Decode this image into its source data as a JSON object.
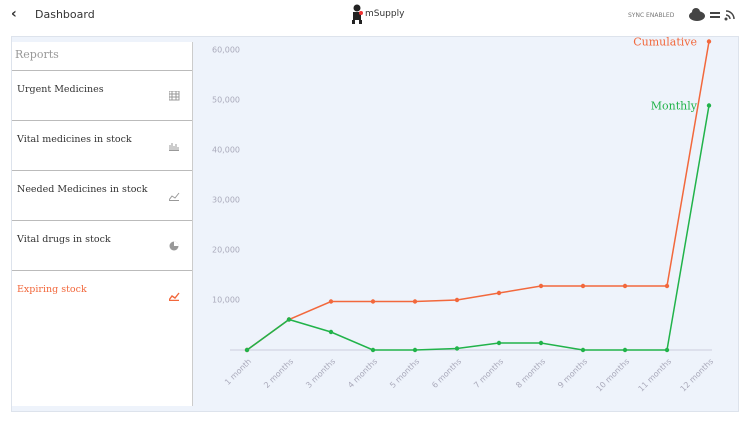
{
  "header": {
    "back_label": "Dashboard",
    "logo_text": "mSupply",
    "sync_status": "SYNC ENABLED"
  },
  "sidebar": {
    "title": "Reports",
    "items": [
      "Urgent Medicines",
      "Vital medicines in stock",
      "Needed Medicines in stock",
      "Vital drugs in stock",
      "Expiring stock"
    ],
    "active": 4
  },
  "chart_data": {
    "type": "line",
    "categories": [
      "1 month",
      "2 months",
      "3 months",
      "4 months",
      "5 months",
      "6 months",
      "7 months",
      "8 months",
      "9 months",
      "10 months",
      "11 months",
      "12 months"
    ],
    "series": [
      {
        "name": "Cumulative",
        "color": "#f2683c",
        "values": [
          0,
          6100,
          9700,
          9700,
          9700,
          10000,
          11400,
          12800,
          12800,
          12800,
          12800,
          61700
        ]
      },
      {
        "name": "Monthly",
        "color": "#21b34a",
        "values": [
          0,
          6100,
          3600,
          0,
          0,
          300,
          1400,
          1400,
          0,
          0,
          0,
          48900
        ]
      }
    ],
    "ylim": [
      0,
      62000
    ],
    "yticks": [
      {
        "value": 10000,
        "label": "10,000"
      },
      {
        "value": 20000,
        "label": "20,000"
      },
      {
        "value": 30000,
        "label": "30,000"
      },
      {
        "value": 40000,
        "label": "40,000"
      },
      {
        "value": 50000,
        "label": "50,000"
      },
      {
        "value": 60000,
        "label": "60,000"
      }
    ]
  }
}
